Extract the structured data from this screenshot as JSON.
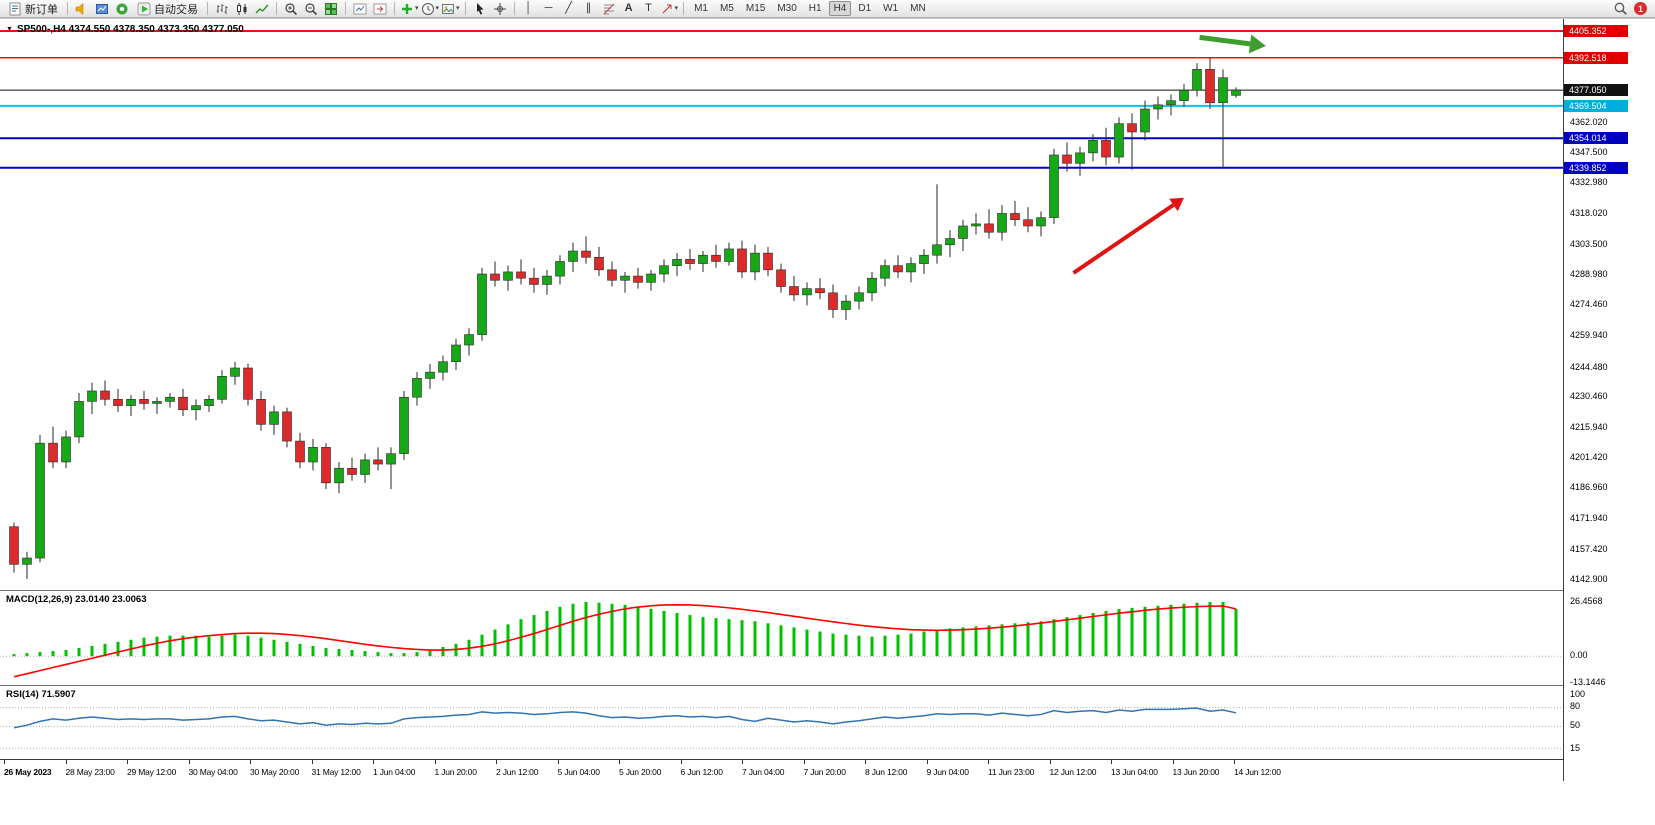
{
  "toolbar": {
    "new_order_label": "新订单",
    "autotrading_label": "自动交易",
    "timeframes": [
      "M1",
      "M5",
      "M15",
      "M30",
      "H1",
      "H4",
      "D1",
      "W1",
      "MN"
    ],
    "active_timeframe": "H4",
    "notification_count": "1",
    "glyph_icons": {
      "vline": "│",
      "hline": "─",
      "trendline": "╱",
      "channel": "∥",
      "text": "A",
      "label": "T",
      "caret": "▾"
    }
  },
  "chart": {
    "title": "SP500-,H4  4374.550 4378.350 4373.350 4377.050",
    "symbol": "SP500-",
    "period": "H4",
    "open": "4374.550",
    "high": "4378.350",
    "low": "4373.350",
    "close": "4377.050"
  },
  "indicators": {
    "macd_label": "MACD(12,26,9) 23.0140 23.0063",
    "rsi_label": "RSI(14) 71.5907"
  },
  "time_axis": {
    "labels": [
      "26 May 2023",
      "28 May 23:00",
      "29 May 12:00",
      "30 May 04:00",
      "30 May 20:00",
      "31 May 12:00",
      "1 Jun 04:00",
      "1 Jun 20:00",
      "2 Jun 12:00",
      "5 Jun 04:00",
      "5 Jun 20:00",
      "6 Jun 12:00",
      "7 Jun 04:00",
      "7 Jun 20:00",
      "8 Jun 12:00",
      "9 Jun 04:00",
      "11 Jun 23:00",
      "12 Jun 12:00",
      "13 Jun 04:00",
      "13 Jun 20:00",
      "14 Jun 12:00"
    ]
  },
  "chart_data": {
    "type": "candlestick",
    "symbol": "SP500-",
    "timeframe": "H4",
    "ylim": [
      4137.7,
      4411.1
    ],
    "colors": {
      "bull": "#17a817",
      "bear": "#dd2a2a",
      "wick": "#2a2a2a",
      "macd_hist": "#00c000",
      "macd_signal": "#ff0000",
      "rsi_line": "#3173b4",
      "level_dots": "#b5b5b5"
    },
    "candles": [
      [
        4168,
        4170,
        4146,
        4150
      ],
      [
        4150,
        4156,
        4143,
        4153
      ],
      [
        4153,
        4212,
        4151,
        4208
      ],
      [
        4208,
        4216,
        4196,
        4199
      ],
      [
        4199,
        4214,
        4196,
        4211
      ],
      [
        4211,
        4232,
        4208,
        4228
      ],
      [
        4228,
        4237,
        4222,
        4233
      ],
      [
        4233,
        4238,
        4226,
        4229
      ],
      [
        4229,
        4234,
        4223,
        4226
      ],
      [
        4226,
        4231,
        4221,
        4229
      ],
      [
        4229,
        4233,
        4224,
        4227
      ],
      [
        4227,
        4230,
        4222,
        4228
      ],
      [
        4228,
        4232,
        4225,
        4230
      ],
      [
        4230,
        4234,
        4221,
        4224
      ],
      [
        4224,
        4229,
        4219,
        4226
      ],
      [
        4226,
        4231,
        4223,
        4229
      ],
      [
        4229,
        4243,
        4227,
        4240
      ],
      [
        4240,
        4247,
        4236,
        4244
      ],
      [
        4244,
        4246,
        4226,
        4229
      ],
      [
        4229,
        4233,
        4214,
        4217
      ],
      [
        4217,
        4226,
        4212,
        4223
      ],
      [
        4223,
        4225,
        4206,
        4209
      ],
      [
        4209,
        4213,
        4196,
        4199
      ],
      [
        4199,
        4210,
        4195,
        4206
      ],
      [
        4206,
        4208,
        4186,
        4189
      ],
      [
        4189,
        4199,
        4184,
        4196
      ],
      [
        4196,
        4201,
        4190,
        4193
      ],
      [
        4193,
        4203,
        4189,
        4200
      ],
      [
        4200,
        4206,
        4195,
        4198
      ],
      [
        4198,
        4206,
        4186,
        4203
      ],
      [
        4203,
        4233,
        4200,
        4230
      ],
      [
        4230,
        4242,
        4226,
        4239
      ],
      [
        4239,
        4246,
        4234,
        4242
      ],
      [
        4242,
        4250,
        4238,
        4247
      ],
      [
        4247,
        4258,
        4243,
        4255
      ],
      [
        4255,
        4263,
        4250,
        4260
      ],
      [
        4260,
        4292,
        4257,
        4289
      ],
      [
        4289,
        4295,
        4283,
        4286
      ],
      [
        4286,
        4293,
        4281,
        4290
      ],
      [
        4290,
        4296,
        4284,
        4287
      ],
      [
        4287,
        4292,
        4280,
        4284
      ],
      [
        4284,
        4291,
        4279,
        4288
      ],
      [
        4288,
        4298,
        4284,
        4295
      ],
      [
        4295,
        4304,
        4290,
        4300
      ],
      [
        4300,
        4307,
        4294,
        4297
      ],
      [
        4297,
        4302,
        4288,
        4291
      ],
      [
        4291,
        4295,
        4283,
        4286
      ],
      [
        4286,
        4290,
        4280,
        4288
      ],
      [
        4288,
        4292,
        4282,
        4285
      ],
      [
        4285,
        4291,
        4281,
        4289
      ],
      [
        4289,
        4296,
        4285,
        4293
      ],
      [
        4293,
        4299,
        4288,
        4296
      ],
      [
        4296,
        4301,
        4291,
        4294
      ],
      [
        4294,
        4300,
        4290,
        4298
      ],
      [
        4298,
        4303,
        4292,
        4295
      ],
      [
        4295,
        4304,
        4293,
        4301
      ],
      [
        4301,
        4305,
        4287,
        4290
      ],
      [
        4290,
        4303,
        4286,
        4299
      ],
      [
        4299,
        4302,
        4288,
        4291
      ],
      [
        4291,
        4294,
        4280,
        4283
      ],
      [
        4283,
        4288,
        4276,
        4279
      ],
      [
        4279,
        4285,
        4274,
        4282
      ],
      [
        4282,
        4287,
        4277,
        4280
      ],
      [
        4280,
        4284,
        4268,
        4272
      ],
      [
        4272,
        4279,
        4267,
        4276
      ],
      [
        4276,
        4283,
        4272,
        4280
      ],
      [
        4280,
        4290,
        4276,
        4287
      ],
      [
        4287,
        4296,
        4283,
        4293
      ],
      [
        4293,
        4298,
        4287,
        4290
      ],
      [
        4290,
        4297,
        4285,
        4294
      ],
      [
        4294,
        4301,
        4289,
        4298
      ],
      [
        4298,
        4332,
        4294,
        4303
      ],
      [
        4303,
        4310,
        4297,
        4306
      ],
      [
        4306,
        4315,
        4300,
        4312
      ],
      [
        4312,
        4318,
        4308,
        4313
      ],
      [
        4313,
        4320,
        4306,
        4309
      ],
      [
        4309,
        4322,
        4305,
        4318
      ],
      [
        4318,
        4324,
        4312,
        4315
      ],
      [
        4315,
        4321,
        4309,
        4312
      ],
      [
        4312,
        4319,
        4307,
        4316
      ],
      [
        4316,
        4349,
        4313,
        4346
      ],
      [
        4346,
        4352,
        4338,
        4342
      ],
      [
        4342,
        4350,
        4336,
        4347
      ],
      [
        4347,
        4356,
        4343,
        4353
      ],
      [
        4353,
        4359,
        4341,
        4345
      ],
      [
        4345,
        4364,
        4342,
        4361
      ],
      [
        4361,
        4366,
        4339,
        4357
      ],
      [
        4357,
        4372,
        4353,
        4368
      ],
      [
        4368,
        4374,
        4363,
        4370
      ],
      [
        4370,
        4375,
        4365,
        4372
      ],
      [
        4372,
        4380,
        4369,
        4377
      ],
      [
        4377,
        4390,
        4374,
        4387
      ],
      [
        4387,
        4392.5,
        4368,
        4371
      ],
      [
        4371,
        4387,
        4340,
        4383
      ],
      [
        4374.55,
        4378.35,
        4373.35,
        4377.05
      ]
    ],
    "hlines": [
      {
        "price": 4405.352,
        "label": "4405.352",
        "color": "#ee1111",
        "width": 2,
        "tag": "#e00000"
      },
      {
        "price": 4392.518,
        "label": "4392.518",
        "color": "#ee1111",
        "width": 1.5,
        "tag": "#e00000"
      },
      {
        "price": 4377.05,
        "label": "4377.050",
        "color": "#111111",
        "width": 1,
        "tag": "#111111"
      },
      {
        "price": 4369.504,
        "label": "4369.504",
        "color": "#00c3ef",
        "width": 2,
        "tag": "#00aede"
      },
      {
        "price": 4354.014,
        "label": "4354.014",
        "color": "#0000cd",
        "width": 2,
        "tag": "#0000c0"
      },
      {
        "price": 4339.852,
        "label": "4339.852",
        "color": "#0000cd",
        "width": 2,
        "tag": "#0000c0"
      }
    ],
    "price_ticks": [
      {
        "v": 4362.02,
        "label": "4362.020"
      },
      {
        "v": 4347.5,
        "label": "4347.500"
      },
      {
        "v": 4332.98,
        "label": "4332.980"
      },
      {
        "v": 4318.02,
        "label": "4318.020"
      },
      {
        "v": 4303.5,
        "label": "4303.500"
      },
      {
        "v": 4288.98,
        "label": "4288.980"
      },
      {
        "v": 4274.46,
        "label": "4274.460"
      },
      {
        "v": 4259.94,
        "label": "4259.940"
      },
      {
        "v": 4244.48,
        "label": "4244.480"
      },
      {
        "v": 4230.46,
        "label": "4230.460"
      },
      {
        "v": 4215.94,
        "label": "4215.940"
      },
      {
        "v": 4201.42,
        "label": "4201.420"
      },
      {
        "v": 4186.96,
        "label": "4186.960"
      },
      {
        "v": 4171.94,
        "label": "4171.940"
      },
      {
        "v": 4157.42,
        "label": "4157.420"
      },
      {
        "v": 4142.9,
        "label": "4142.900"
      }
    ],
    "annotations": [
      {
        "type": "arrow",
        "color": "#3f9d2f",
        "width": 5,
        "from": [
          91.2,
          4402.3
        ],
        "to": [
          96.3,
          4398.2
        ]
      },
      {
        "type": "arrow",
        "color": "#e11212",
        "width": 4,
        "from": [
          81.5,
          4289.5
        ],
        "to": [
          90.0,
          4325.5
        ]
      }
    ],
    "macd": {
      "params": "12,26,9",
      "value": 23.014,
      "signal_value": 23.0063,
      "ylim": [
        -14.0,
        31.7
      ],
      "hist": [
        1,
        1.5,
        2,
        2.5,
        3,
        4,
        5,
        6,
        7,
        8,
        9,
        9.5,
        10,
        10,
        10,
        9.5,
        10,
        10.5,
        10,
        9,
        8,
        7,
        6,
        5,
        4,
        3.5,
        3,
        2.5,
        2,
        1.5,
        1.5,
        2,
        3,
        4.5,
        6,
        8,
        10.5,
        13,
        15.5,
        18,
        20,
        22,
        24,
        25.5,
        26.4,
        26,
        25.5,
        25,
        24,
        23,
        22,
        21,
        20,
        19,
        18.5,
        18,
        17.5,
        17,
        16,
        15,
        14,
        13,
        12,
        11,
        10.5,
        10,
        9.5,
        10,
        10.5,
        11,
        12,
        13,
        13.5,
        14,
        14.5,
        15,
        15.5,
        16,
        16.5,
        17,
        18,
        19,
        20,
        21,
        22,
        23,
        23.5,
        24,
        24.5,
        25,
        25.5,
        26,
        26.3,
        26.4,
        23.0
      ],
      "signal": [
        -10,
        -8.5,
        -7,
        -5.5,
        -4,
        -2.5,
        -1,
        0.5,
        2,
        3.5,
        5,
        6.3,
        7.5,
        8.5,
        9.3,
        10,
        10.5,
        11,
        11.2,
        11.2,
        11,
        10.6,
        10,
        9.3,
        8.5,
        7.6,
        6.7,
        5.8,
        5,
        4.3,
        3.7,
        3.3,
        3,
        3,
        3.3,
        3.9,
        4.8,
        6,
        7.5,
        9.2,
        11,
        13,
        15,
        17,
        18.8,
        20.4,
        21.8,
        23,
        23.9,
        24.5,
        24.9,
        25,
        24.9,
        24.6,
        24.1,
        23.5,
        22.8,
        22,
        21.2,
        20.3,
        19.4,
        18.5,
        17.6,
        16.7,
        15.9,
        15.1,
        14.4,
        13.8,
        13.3,
        12.9,
        12.7,
        12.6,
        12.7,
        12.9,
        13.2,
        13.6,
        14.1,
        14.7,
        15.4,
        16.1,
        16.9,
        17.7,
        18.5,
        19.3,
        20.1,
        20.9,
        21.6,
        22.3,
        22.9,
        23.4,
        23.8,
        24.1,
        24.3,
        24.4,
        23.0
      ],
      "axis": [
        {
          "v": 26.4568,
          "label": "26.4568"
        },
        {
          "v": 0,
          "label": "0.00"
        },
        {
          "v": -13.1446,
          "label": "-13.1446"
        }
      ]
    },
    "rsi": {
      "period": 14,
      "value": 71.5907,
      "ylim": [
        -1.5,
        114.0
      ],
      "values": [
        48,
        52,
        58,
        62,
        60,
        63,
        65,
        63,
        61,
        62,
        61,
        62,
        62,
        60,
        61,
        62,
        65,
        66,
        62,
        59,
        60,
        57,
        54,
        56,
        52,
        54,
        53,
        55,
        54,
        55,
        62,
        64,
        65,
        66,
        68,
        69,
        73,
        71,
        72,
        71,
        69,
        70,
        72,
        73,
        71,
        67,
        64,
        65,
        63,
        64,
        66,
        67,
        65,
        66,
        64,
        66,
        61,
        58,
        63,
        60,
        57,
        59,
        57,
        54,
        57,
        59,
        62,
        65,
        63,
        65,
        67,
        70,
        69,
        70,
        70,
        68,
        71,
        69,
        67,
        69,
        75,
        72,
        74,
        75,
        72,
        76,
        74,
        77,
        77,
        77,
        78,
        79,
        74,
        76,
        71.59
      ],
      "levels": [
        80,
        50,
        15
      ],
      "axis": [
        {
          "v": 100,
          "label": "100"
        },
        {
          "v": 80,
          "label": "80"
        },
        {
          "v": 50,
          "label": "50"
        },
        {
          "v": 15,
          "label": "15"
        }
      ]
    }
  }
}
